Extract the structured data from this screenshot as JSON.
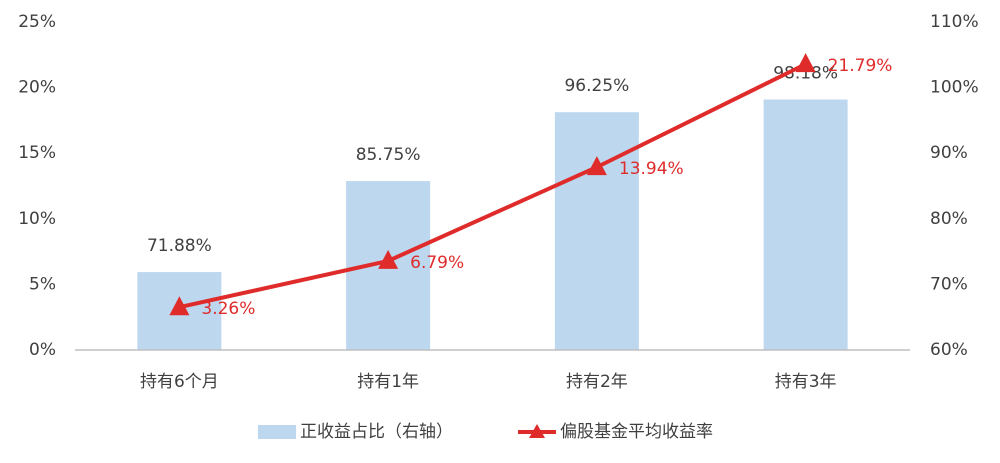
{
  "chart_data": {
    "type": "bar",
    "categories": [
      "持有6个月",
      "持有1年",
      "持有2年",
      "持有3年"
    ],
    "series": [
      {
        "name": "正收益占比（右轴）",
        "type": "bar",
        "axis": "y2",
        "color": "#bdd7ee",
        "values": [
          71.88,
          85.75,
          96.25,
          98.18
        ],
        "value_labels": [
          "71.88%",
          "85.75%",
          "96.25%",
          "98.18%"
        ]
      },
      {
        "name": "偏股基金平均收益率",
        "type": "line",
        "color": "#e02b2b",
        "values": [
          3.26,
          6.79,
          13.94,
          21.79
        ],
        "value_labels": [
          "3.26%",
          "6.79%",
          "13.94%",
          "21.79%"
        ]
      }
    ],
    "ylim": [
      0,
      25
    ],
    "yticks": [
      {
        "value": 0,
        "label": "0%"
      },
      {
        "value": 5,
        "label": "5%"
      },
      {
        "value": 10,
        "label": "10%"
      },
      {
        "value": 15,
        "label": "15%"
      },
      {
        "value": 20,
        "label": "20%"
      },
      {
        "value": 25,
        "label": "25%"
      }
    ],
    "y2lim": [
      60,
      110
    ],
    "y2ticks": [
      {
        "value": 60,
        "label": "60%"
      },
      {
        "value": 70,
        "label": "70%"
      },
      {
        "value": 80,
        "label": "80%"
      },
      {
        "value": 90,
        "label": "90%"
      },
      {
        "value": 100,
        "label": "100%"
      },
      {
        "value": 110,
        "label": "110%"
      }
    ],
    "grid": false,
    "legend": "bottom"
  }
}
